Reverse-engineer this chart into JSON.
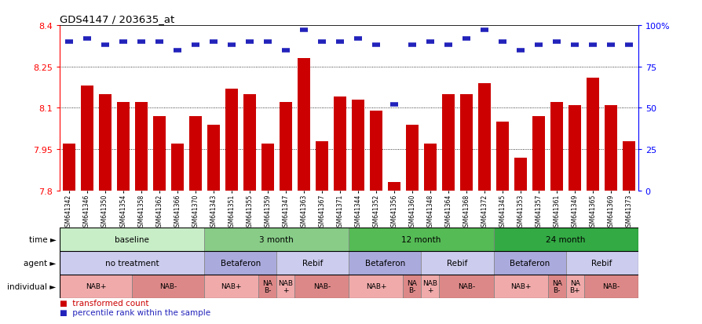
{
  "title": "GDS4147 / 203635_at",
  "samples": [
    "GSM641342",
    "GSM641346",
    "GSM641350",
    "GSM641354",
    "GSM641358",
    "GSM641362",
    "GSM641366",
    "GSM641370",
    "GSM641343",
    "GSM641351",
    "GSM641355",
    "GSM641359",
    "GSM641347",
    "GSM641363",
    "GSM641367",
    "GSM641371",
    "GSM641344",
    "GSM641352",
    "GSM641356",
    "GSM641360",
    "GSM641348",
    "GSM641364",
    "GSM641368",
    "GSM641372",
    "GSM641345",
    "GSM641353",
    "GSM641357",
    "GSM641361",
    "GSM641349",
    "GSM641365",
    "GSM641369",
    "GSM641373"
  ],
  "bar_values": [
    7.97,
    8.18,
    8.15,
    8.12,
    8.12,
    8.07,
    7.97,
    8.07,
    8.04,
    8.17,
    8.15,
    7.97,
    8.12,
    8.28,
    7.98,
    8.14,
    8.13,
    8.09,
    7.83,
    8.04,
    7.97,
    8.15,
    8.15,
    8.19,
    8.05,
    7.92,
    8.07,
    8.12,
    8.11,
    8.21,
    8.11,
    7.98
  ],
  "percentile_values": [
    90,
    92,
    88,
    90,
    90,
    90,
    85,
    88,
    90,
    88,
    90,
    90,
    85,
    97,
    90,
    90,
    92,
    88,
    52,
    88,
    90,
    88,
    92,
    97,
    90,
    85,
    88,
    90,
    88,
    88,
    88,
    88
  ],
  "ymin": 7.8,
  "ymax": 8.4,
  "yticks": [
    7.8,
    7.95,
    8.1,
    8.25,
    8.4
  ],
  "ytick_labels": [
    "7.8",
    "7.95",
    "8.1",
    "8.25",
    "8.4"
  ],
  "right_yticks": [
    0,
    25,
    50,
    75,
    100
  ],
  "right_ytick_labels": [
    "0",
    "25",
    "50",
    "75",
    "100%"
  ],
  "bar_color": "#cc0000",
  "percentile_color": "#2222bb",
  "bar_width": 0.7,
  "time_groups": [
    {
      "label": "baseline",
      "start": 0,
      "end": 8,
      "color": "#c8eec8"
    },
    {
      "label": "3 month",
      "start": 8,
      "end": 16,
      "color": "#88cc88"
    },
    {
      "label": "12 month",
      "start": 16,
      "end": 24,
      "color": "#55bb55"
    },
    {
      "label": "24 month",
      "start": 24,
      "end": 32,
      "color": "#33aa44"
    }
  ],
  "agent_groups": [
    {
      "label": "no treatment",
      "start": 0,
      "end": 8,
      "color": "#ccccee"
    },
    {
      "label": "Betaferon",
      "start": 8,
      "end": 12,
      "color": "#aaaadd"
    },
    {
      "label": "Rebif",
      "start": 12,
      "end": 16,
      "color": "#ccccee"
    },
    {
      "label": "Betaferon",
      "start": 16,
      "end": 20,
      "color": "#aaaadd"
    },
    {
      "label": "Rebif",
      "start": 20,
      "end": 24,
      "color": "#ccccee"
    },
    {
      "label": "Betaferon",
      "start": 24,
      "end": 28,
      "color": "#aaaadd"
    },
    {
      "label": "Rebif",
      "start": 28,
      "end": 32,
      "color": "#ccccee"
    }
  ],
  "individual_groups": [
    {
      "label": "NAB+",
      "start": 0,
      "end": 4,
      "color": "#f0aaaa"
    },
    {
      "label": "NAB-",
      "start": 4,
      "end": 8,
      "color": "#dd8888"
    },
    {
      "label": "NAB+",
      "start": 8,
      "end": 11,
      "color": "#f0aaaa"
    },
    {
      "label": "NA\nB-",
      "start": 11,
      "end": 12,
      "color": "#dd8888"
    },
    {
      "label": "NAB\n+",
      "start": 12,
      "end": 13,
      "color": "#f0aaaa"
    },
    {
      "label": "NAB-",
      "start": 13,
      "end": 16,
      "color": "#dd8888"
    },
    {
      "label": "NAB+",
      "start": 16,
      "end": 19,
      "color": "#f0aaaa"
    },
    {
      "label": "NA\nB-",
      "start": 19,
      "end": 20,
      "color": "#dd8888"
    },
    {
      "label": "NAB\n+",
      "start": 20,
      "end": 21,
      "color": "#f0aaaa"
    },
    {
      "label": "NAB-",
      "start": 21,
      "end": 24,
      "color": "#dd8888"
    },
    {
      "label": "NAB+",
      "start": 24,
      "end": 27,
      "color": "#f0aaaa"
    },
    {
      "label": "NA\nB-",
      "start": 27,
      "end": 28,
      "color": "#dd8888"
    },
    {
      "label": "NA\nB+",
      "start": 28,
      "end": 29,
      "color": "#f0aaaa"
    },
    {
      "label": "NAB-",
      "start": 29,
      "end": 32,
      "color": "#dd8888"
    }
  ],
  "row_labels": [
    "time",
    "agent",
    "individual"
  ],
  "legend_labels": [
    "transformed count",
    "percentile rank within the sample"
  ]
}
